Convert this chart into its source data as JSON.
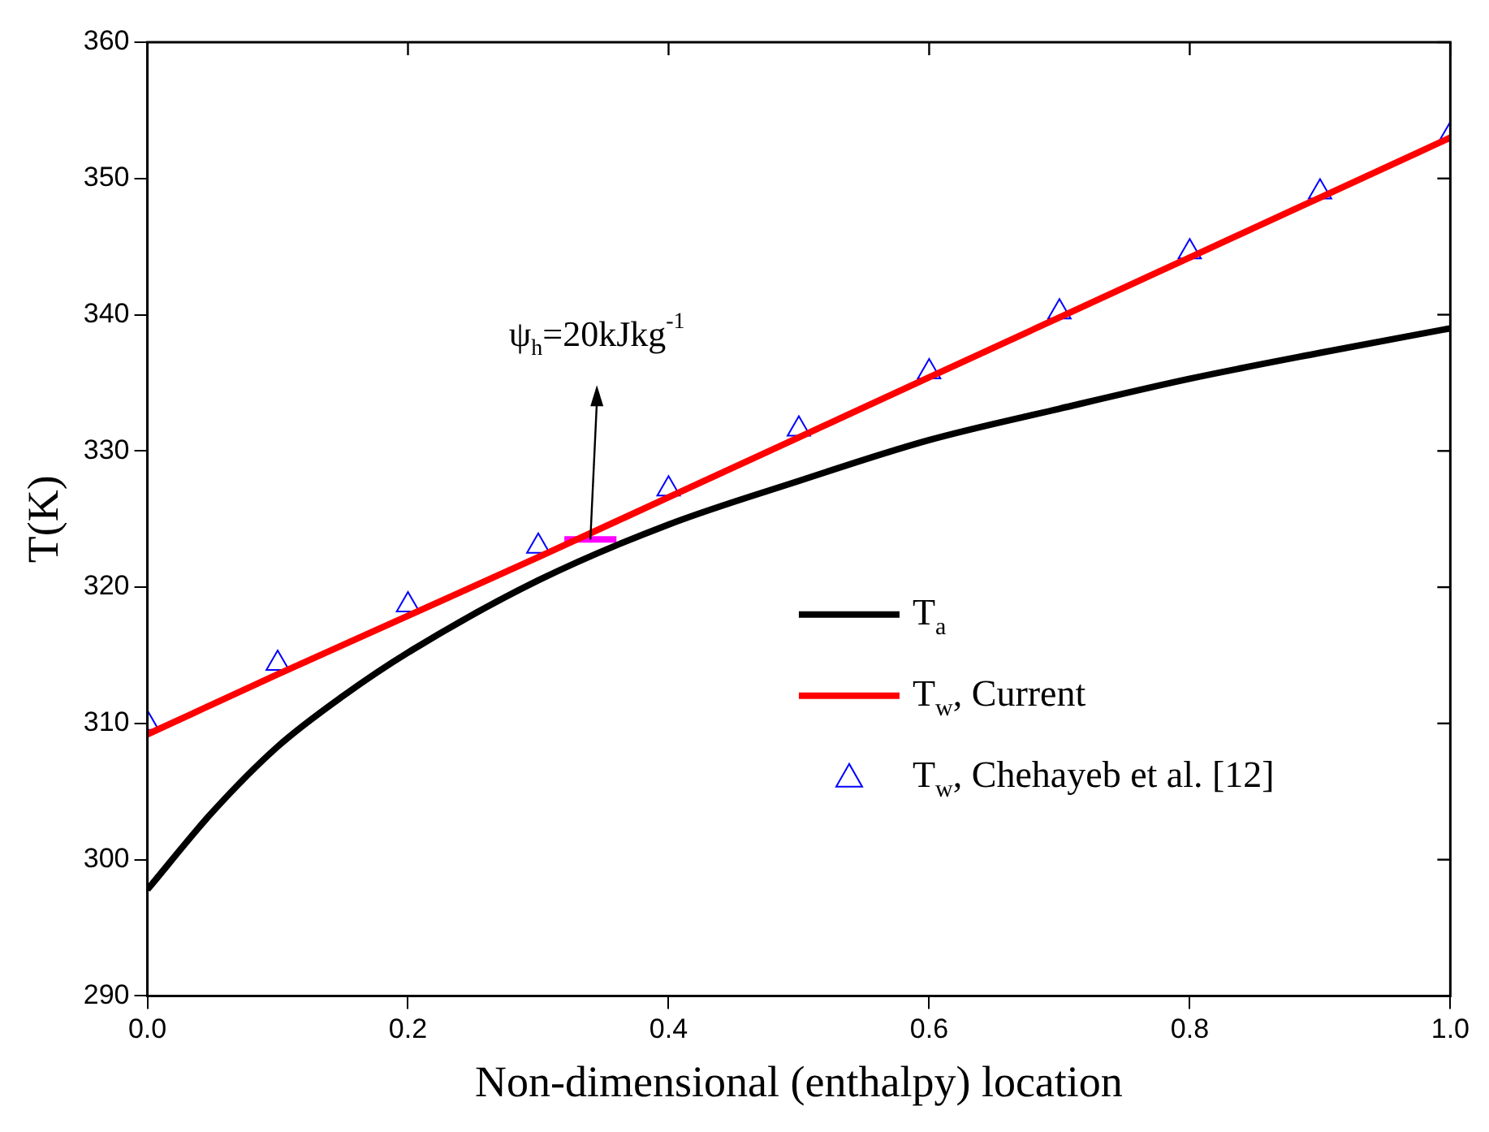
{
  "chart_data": {
    "type": "line",
    "xlabel": "Non-dimensional (enthalpy) location",
    "ylabel": "T(K)",
    "xlim": [
      0,
      1
    ],
    "xticks": [
      {
        "value": 0,
        "label": "0.0"
      },
      {
        "value": 0.2,
        "label": "0.2"
      },
      {
        "value": 0.4,
        "label": "0.4"
      },
      {
        "value": 0.6,
        "label": "0.6"
      },
      {
        "value": 0.8,
        "label": "0.8"
      },
      {
        "value": 1,
        "label": "1.0"
      }
    ],
    "ylim": [
      290,
      360
    ],
    "yticks": [
      290,
      300,
      310,
      320,
      330,
      340,
      350,
      360
    ],
    "grid": false,
    "legend": "right",
    "annotations": [
      {
        "text": "ψ$_{h}$=20kJkg$^{-1}$",
        "x": 0.34,
        "y": 323.5
      }
    ],
    "series": [
      {
        "name": "T$_{a}$",
        "color": "#000000",
        "marker": "none",
        "line_style": "solid",
        "x": [
          0,
          0.05,
          0.1,
          0.15,
          0.2,
          0.3,
          0.4,
          0.5,
          0.6,
          0.7,
          0.8,
          0.9,
          1
        ],
        "values": [
          297.8,
          303.5,
          308.3,
          312,
          315.2,
          320.5,
          324.6,
          327.8,
          330.8,
          333.1,
          335.3,
          337.2,
          339
        ]
      },
      {
        "name": "T$_{w}$, Current",
        "color": "#ff0000",
        "marker": "none",
        "line_style": "solid",
        "x": [
          0,
          0.1,
          0.2,
          0.3,
          0.4,
          0.5,
          0.6,
          0.7,
          0.8,
          0.9,
          1
        ],
        "values": [
          309.2,
          313.6,
          317.9,
          322.2,
          326.6,
          331,
          335.4,
          339.8,
          344.2,
          348.6,
          353
        ]
      },
      {
        "name": "T$_{w}$, Chehayeb et al. [12]",
        "type": "scatter",
        "color": "#0000ff",
        "marker": "triangle",
        "x": [
          0,
          0.1,
          0.2,
          0.3,
          0.4,
          0.5,
          0.6,
          0.7,
          0.8,
          0.9,
          1
        ],
        "values": [
          310,
          314.4,
          318.7,
          323,
          327.2,
          331.6,
          335.8,
          340.2,
          344.6,
          349,
          353.2
        ]
      },
      {
        "color": "#ff00ff",
        "marker": "none",
        "line_style": "solid",
        "x": [
          0.32,
          0.36
        ],
        "values": [
          323.5,
          323.5
        ]
      }
    ]
  }
}
